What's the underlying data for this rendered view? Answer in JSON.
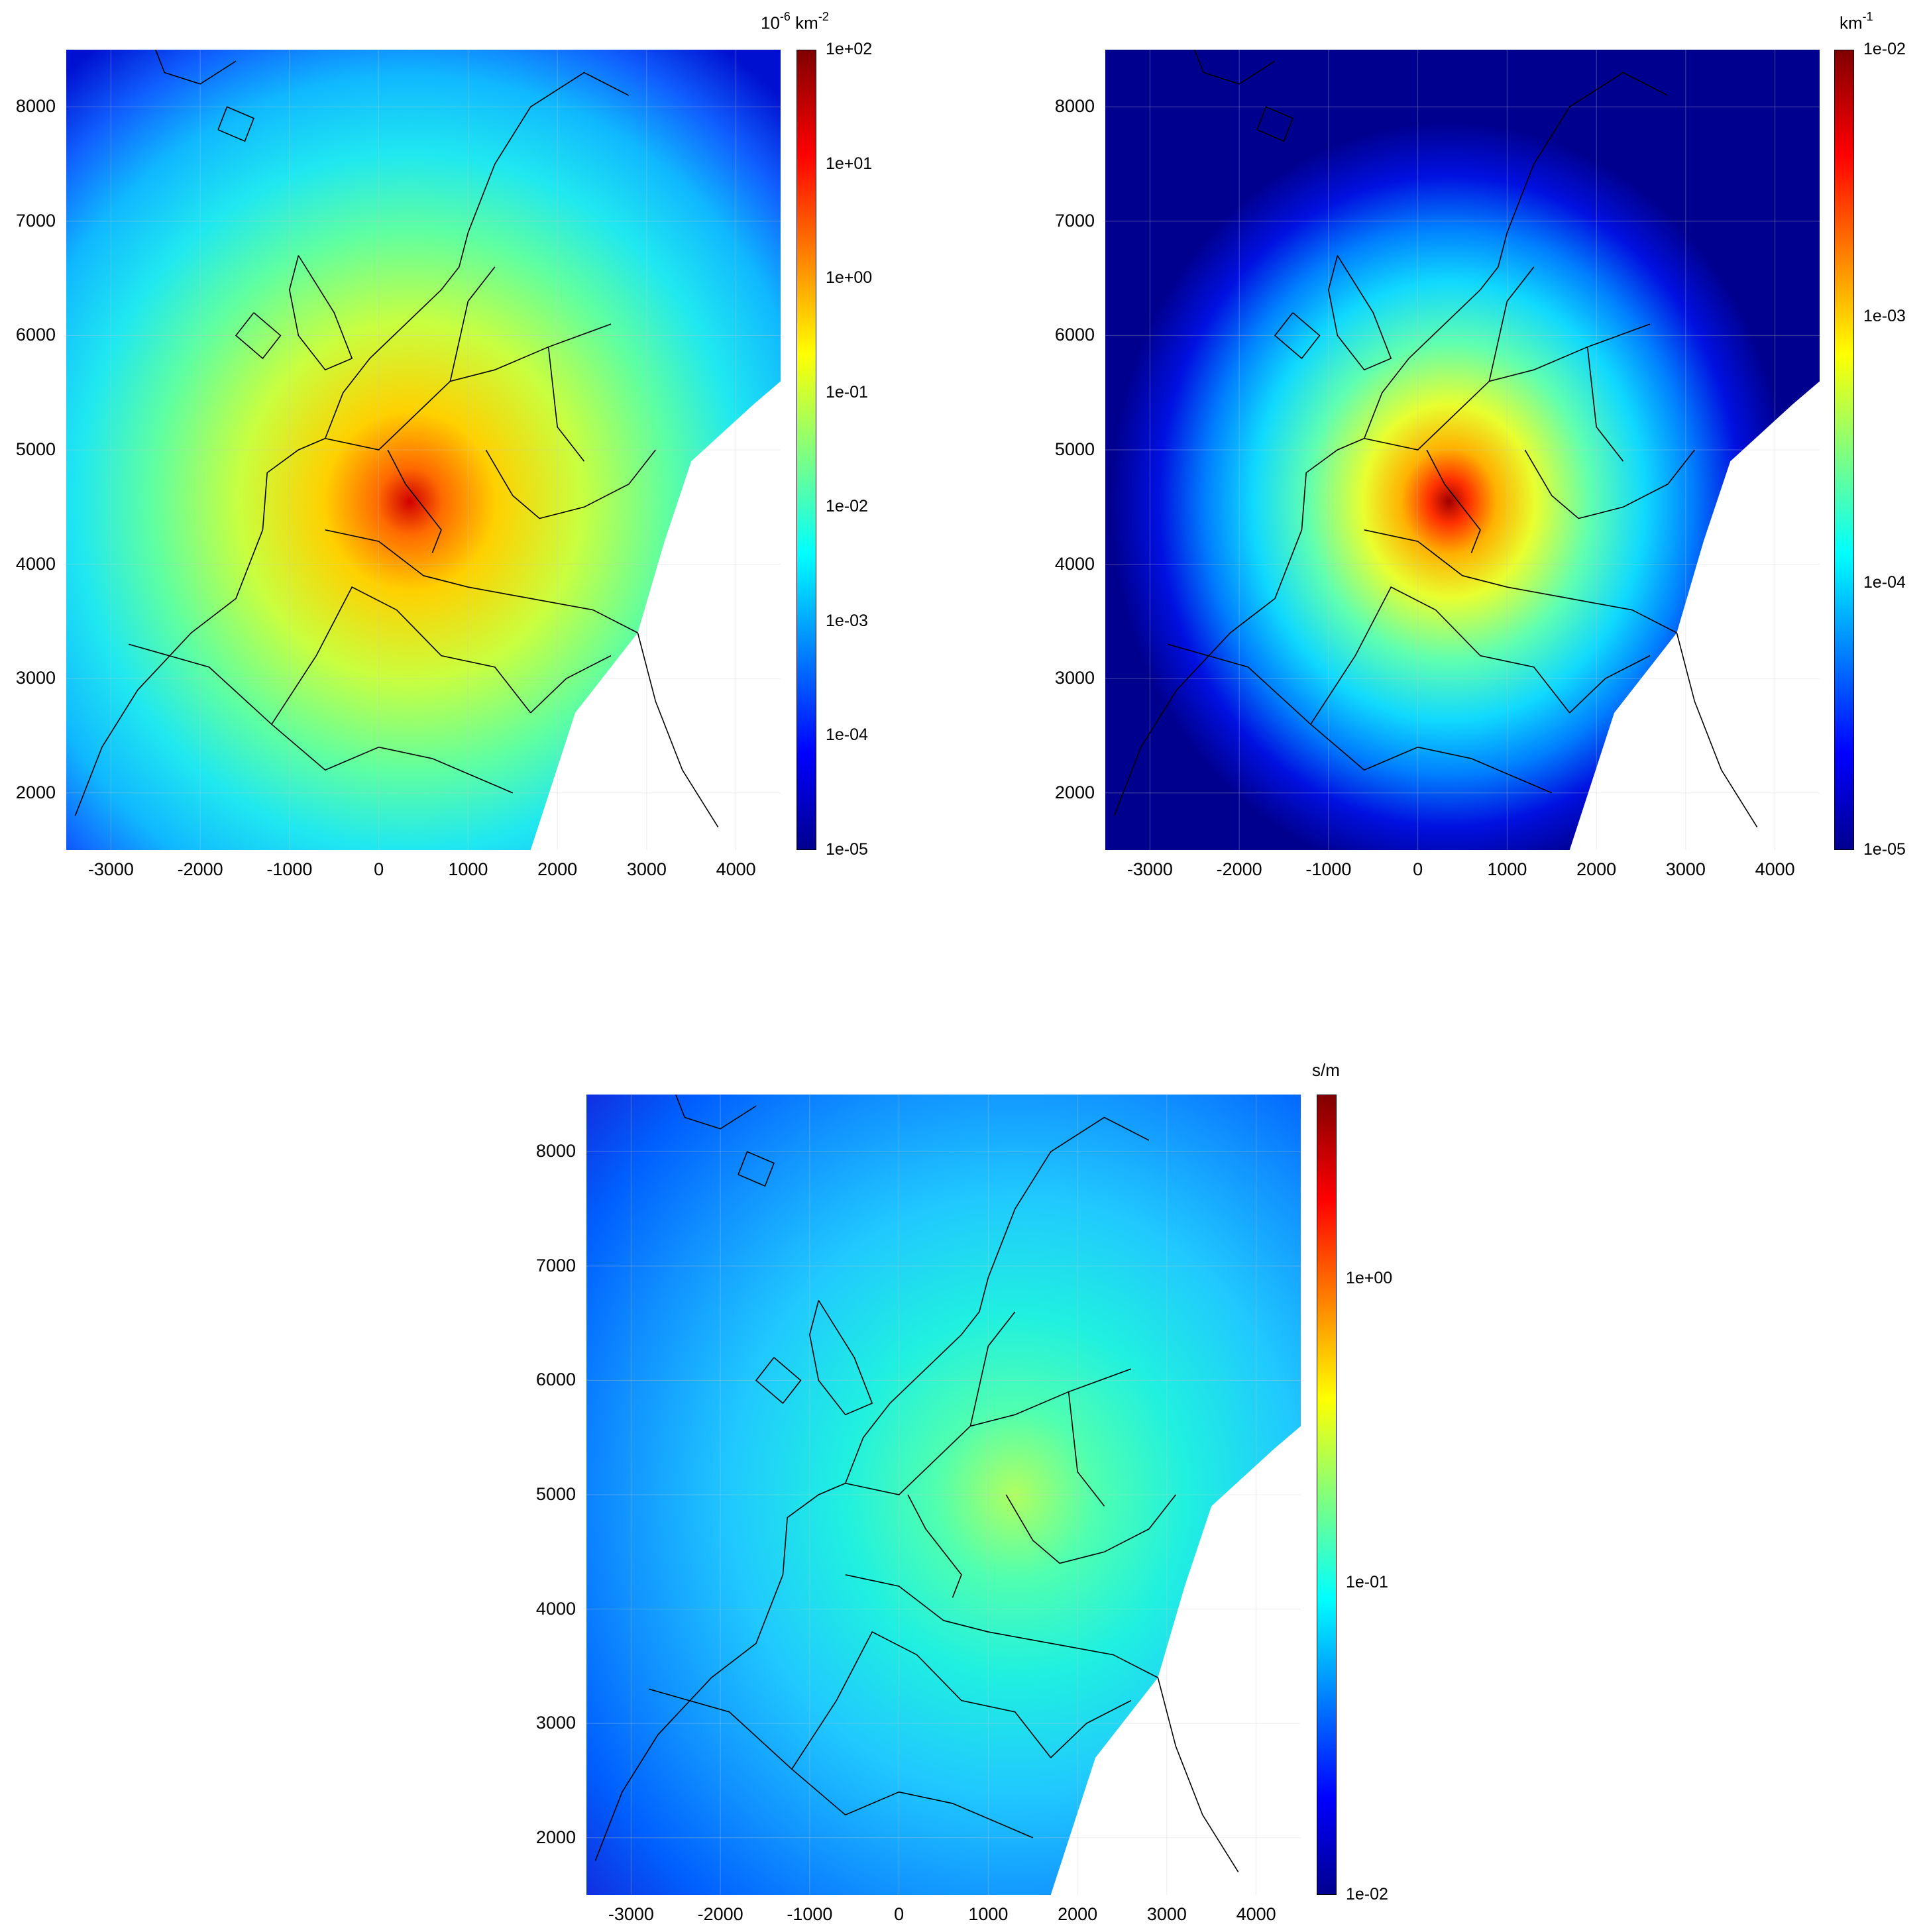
{
  "chart_data": [
    {
      "type": "heatmap",
      "unit_base": "10",
      "unit_exp1": "-6",
      "unit_mid": " km",
      "unit_exp2": "-2",
      "colorbar_ticks": [
        "1e+02",
        "1e+01",
        "1e+00",
        "1e-01",
        "1e-02",
        "1e-03",
        "1e-04",
        "1e-05"
      ],
      "colorbar_scale": "log",
      "xticks": [
        "-3000",
        "-2000",
        "-1000",
        "0",
        "1000",
        "2000",
        "3000",
        "4000"
      ],
      "yticks": [
        "8000",
        "7000",
        "6000",
        "5000",
        "4000",
        "3000",
        "2000"
      ],
      "xlim": [
        -3500,
        4500
      ],
      "ylim": [
        1500,
        8500
      ],
      "grid": true,
      "hotspot": [
        350,
        4550
      ],
      "colormap": "jet"
    },
    {
      "type": "heatmap",
      "unit_base": "km",
      "unit_exp1": "-1",
      "colorbar_ticks": [
        "1e-02",
        "1e-03",
        "1e-04",
        "1e-05"
      ],
      "colorbar_scale": "log",
      "xticks": [
        "-3000",
        "-2000",
        "-1000",
        "0",
        "1000",
        "2000",
        "3000",
        "4000"
      ],
      "yticks": [
        "8000",
        "7000",
        "6000",
        "5000",
        "4000",
        "3000",
        "2000"
      ],
      "xlim": [
        -3500,
        4500
      ],
      "ylim": [
        1500,
        8500
      ],
      "grid": true,
      "hotspot": [
        350,
        4550
      ],
      "colormap": "jet"
    },
    {
      "type": "heatmap",
      "unit_base": "s/m",
      "colorbar_ticks": [
        "1e+00",
        "1e-01",
        "1e-02"
      ],
      "colorbar_scale": "log",
      "xticks": [
        "-3000",
        "-2000",
        "-1000",
        "0",
        "1000",
        "2000",
        "3000",
        "4000"
      ],
      "yticks": [
        "8000",
        "7000",
        "6000",
        "5000",
        "4000",
        "3000",
        "2000"
      ],
      "xlim": [
        -3500,
        4500
      ],
      "ylim": [
        1500,
        8500
      ],
      "grid": true,
      "colormap": "jet"
    }
  ]
}
